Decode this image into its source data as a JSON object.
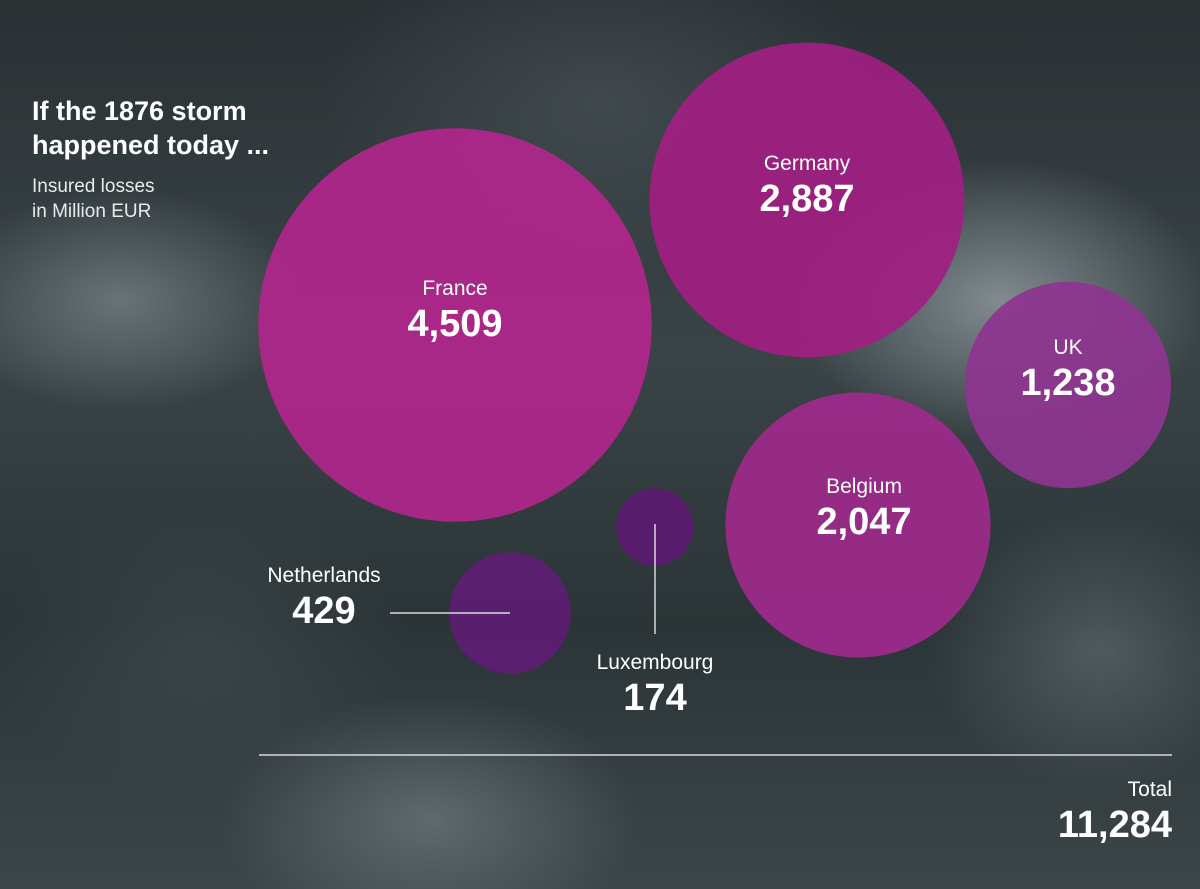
{
  "chart_data": {
    "type": "bubble",
    "title": "If the 1876 storm happened today ...",
    "subtitle": "Insured losses in Million EUR",
    "series": [
      {
        "name": "France",
        "value": 4509,
        "label": "4,509",
        "color": "#b0268c"
      },
      {
        "name": "Germany",
        "value": 2887,
        "label": "2,887",
        "color": "#a01f82"
      },
      {
        "name": "UK",
        "value": 1238,
        "label": "1,238",
        "color": "#8e3590"
      },
      {
        "name": "Belgium",
        "value": 2047,
        "label": "2,047",
        "color": "#9e2a8c"
      },
      {
        "name": "Luxembourg",
        "value": 174,
        "label": "174",
        "color": "#5a1a70"
      },
      {
        "name": "Netherlands",
        "value": 429,
        "label": "429",
        "color": "#5e1d72"
      }
    ],
    "total": {
      "name": "Total",
      "value": 11284,
      "label": "11,284"
    }
  },
  "title_line1": "If the 1876 storm",
  "title_line2": "happened today ...",
  "subtitle_line1": "Insured losses",
  "subtitle_line2": "in Million EUR"
}
